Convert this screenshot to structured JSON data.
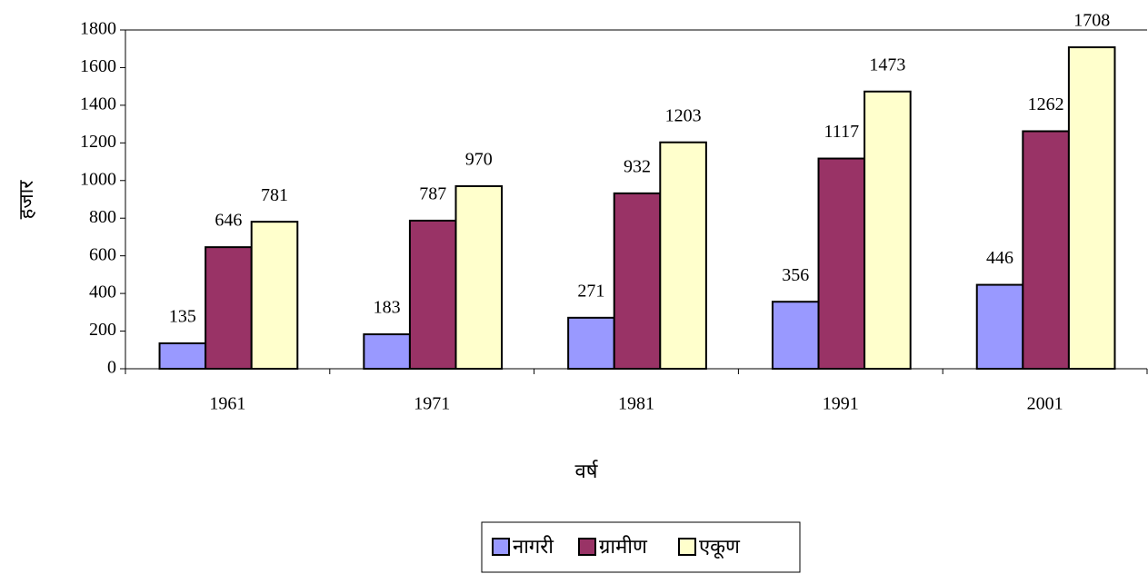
{
  "chart_data": {
    "type": "bar",
    "categories": [
      "1961",
      "1971",
      "1981",
      "1991",
      "2001"
    ],
    "series": [
      {
        "name": "नागरी",
        "color": "#9999ff",
        "values": [
          135,
          183,
          271,
          356,
          446
        ]
      },
      {
        "name": "ग्रामीण",
        "color": "#993366",
        "values": [
          646,
          787,
          932,
          1117,
          1262
        ]
      },
      {
        "name": "एकूण",
        "color": "#ffffcc",
        "values": [
          781,
          970,
          1203,
          1473,
          1708
        ]
      }
    ],
    "xlabel": "वर्ष",
    "ylabel": "हजार",
    "ylim": [
      0,
      1800
    ],
    "yticks": [
      0,
      200,
      400,
      600,
      800,
      1000,
      1200,
      1400,
      1600,
      1800
    ],
    "grid": false,
    "legend": "bottom"
  }
}
